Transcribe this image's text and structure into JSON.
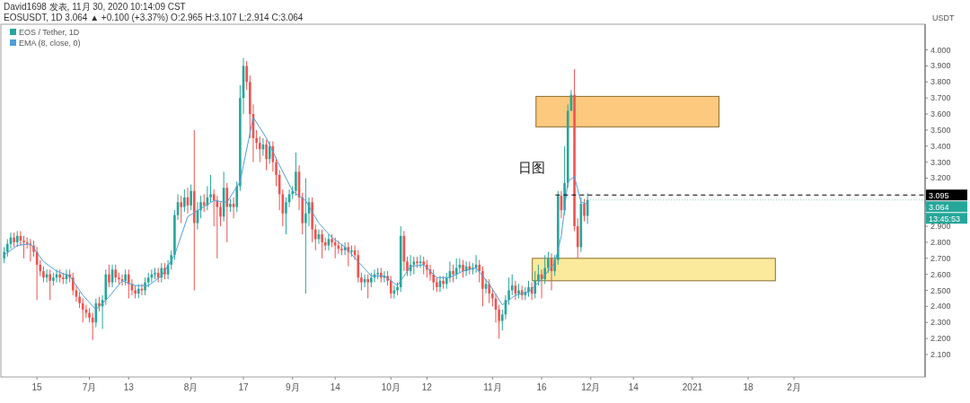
{
  "chart_data": {
    "type": "candlestick",
    "ylabel": "USDT",
    "legend": "top left",
    "annotations": [
      "David1698 发表, 11月 30, 2020 10:14:09 CST",
      "EOSUSDT, 1D 3.064 ▲ +0.100 (+3.37%) O:2.965 H:3.107 L:2.914 C:3.064",
      "日图",
      "13:45:53",
      {
        "text": "3.064",
        "x": "2020-11-30",
        "y": 3.064
      }
    ],
    "x": [
      "2020-06-05",
      "2020-06-06",
      "2020-06-07",
      "2020-06-08",
      "2020-06-09",
      "2020-06-10",
      "2020-06-11",
      "2020-06-12",
      "2020-06-13",
      "2020-06-14",
      "2020-06-15",
      "2020-06-16",
      "2020-06-17",
      "2020-06-18",
      "2020-06-19",
      "2020-06-20",
      "2020-06-21",
      "2020-06-22",
      "2020-06-23",
      "2020-06-24",
      "2020-06-25",
      "2020-06-26",
      "2020-06-27",
      "2020-06-28",
      "2020-06-29",
      "2020-06-30",
      "2020-07-01",
      "2020-07-02",
      "2020-07-03",
      "2020-07-04",
      "2020-07-05",
      "2020-07-06",
      "2020-07-07",
      "2020-07-08",
      "2020-07-09",
      "2020-07-10",
      "2020-07-11",
      "2020-07-12",
      "2020-07-13",
      "2020-07-14",
      "2020-07-15",
      "2020-07-16",
      "2020-07-17",
      "2020-07-18",
      "2020-07-19",
      "2020-07-20",
      "2020-07-21",
      "2020-07-22",
      "2020-07-23",
      "2020-07-24",
      "2020-07-25",
      "2020-07-26",
      "2020-07-27",
      "2020-07-28",
      "2020-07-29",
      "2020-07-30",
      "2020-07-31",
      "2020-08-01",
      "2020-08-02",
      "2020-08-03",
      "2020-08-04",
      "2020-08-05",
      "2020-08-06",
      "2020-08-07",
      "2020-08-08",
      "2020-08-09",
      "2020-08-10",
      "2020-08-11",
      "2020-08-12",
      "2020-08-13",
      "2020-08-14",
      "2020-08-15",
      "2020-08-16",
      "2020-08-17",
      "2020-08-18",
      "2020-08-19",
      "2020-08-20",
      "2020-08-21",
      "2020-08-22",
      "2020-08-23",
      "2020-08-24",
      "2020-08-25",
      "2020-08-26",
      "2020-08-27",
      "2020-08-28",
      "2020-08-29",
      "2020-08-30",
      "2020-08-31",
      "2020-09-01",
      "2020-09-02",
      "2020-09-03",
      "2020-09-04",
      "2020-09-05",
      "2020-09-06",
      "2020-09-07",
      "2020-09-08",
      "2020-09-09",
      "2020-09-10",
      "2020-09-11",
      "2020-09-12",
      "2020-09-13",
      "2020-09-14",
      "2020-09-15",
      "2020-09-16",
      "2020-09-17",
      "2020-09-18",
      "2020-09-19",
      "2020-09-20",
      "2020-09-21",
      "2020-09-22",
      "2020-09-23",
      "2020-09-24",
      "2020-09-25",
      "2020-09-26",
      "2020-09-27",
      "2020-09-28",
      "2020-09-29",
      "2020-09-30",
      "2020-10-01",
      "2020-10-02",
      "2020-10-03",
      "2020-10-04",
      "2020-10-05",
      "2020-10-06",
      "2020-10-07",
      "2020-10-08",
      "2020-10-09",
      "2020-10-10",
      "2020-10-11",
      "2020-10-12",
      "2020-10-13",
      "2020-10-14",
      "2020-10-15",
      "2020-10-16",
      "2020-10-17",
      "2020-10-18",
      "2020-10-19",
      "2020-10-20",
      "2020-10-21",
      "2020-10-22",
      "2020-10-23",
      "2020-10-24",
      "2020-10-25",
      "2020-10-26",
      "2020-10-27",
      "2020-10-28",
      "2020-10-29",
      "2020-10-30",
      "2020-10-31",
      "2020-11-01",
      "2020-11-02",
      "2020-11-03",
      "2020-11-04",
      "2020-11-05",
      "2020-11-06",
      "2020-11-07",
      "2020-11-08",
      "2020-11-09",
      "2020-11-10",
      "2020-11-11",
      "2020-11-12",
      "2020-11-13",
      "2020-11-14",
      "2020-11-15",
      "2020-11-16",
      "2020-11-17",
      "2020-11-18",
      "2020-11-19",
      "2020-11-20",
      "2020-11-21",
      "2020-11-22",
      "2020-11-23",
      "2020-11-24",
      "2020-11-25",
      "2020-11-26",
      "2020-11-27",
      "2020-11-28",
      "2020-11-29",
      "2020-11-30"
    ],
    "series": [
      {
        "name": "EOS / Tether, 1D",
        "colors": [
          "#26a69a",
          "#26a69a",
          "#26a69a",
          "#ef5350",
          "#26a69a",
          "#ef5350",
          "#ef5350",
          "#ef5350",
          "#ef5350",
          "#ef5350",
          "#ef5350",
          "#ef5350",
          "#ef5350",
          "#26a69a",
          "#ef5350",
          "#26a69a",
          "#26a69a",
          "#ef5350",
          "#ef5350",
          "#26a69a",
          "#ef5350",
          "#ef5350",
          "#ef5350",
          "#ef5350",
          "#ef5350",
          "#ef5350",
          "#ef5350",
          "#ef5350",
          "#26a69a",
          "#ef5350",
          "#26a69a",
          "#26a69a",
          "#ef5350",
          "#26a69a",
          "#ef5350",
          "#ef5350",
          "#ef5350",
          "#26a69a",
          "#ef5350",
          "#ef5350",
          "#ef5350",
          "#26a69a",
          "#ef5350",
          "#26a69a",
          "#26a69a",
          "#26a69a",
          "#26a69a",
          "#ef5350",
          "#26a69a",
          "#ef5350",
          "#26a69a",
          "#26a69a",
          "#26a69a",
          "#26a69a",
          "#ef5350",
          "#26a69a",
          "#ef5350",
          "#26a69a",
          "#ef5350",
          "#26a69a",
          "#26a69a",
          "#ef5350",
          "#26a69a",
          "#26a69a",
          "#ef5350",
          "#ef5350",
          "#ef5350",
          "#26a69a",
          "#ef5350",
          "#26a69a",
          "#ef5350",
          "#26a69a",
          "#26a69a",
          "#26a69a",
          "#ef5350",
          "#ef5350",
          "#ef5350",
          "#ef5350",
          "#ef5350",
          "#26a69a",
          "#ef5350",
          "#26a69a",
          "#ef5350",
          "#ef5350",
          "#ef5350",
          "#ef5350",
          "#26a69a",
          "#26a69a",
          "#26a69a",
          "#26a69a",
          "#ef5350",
          "#ef5350",
          "#26a69a",
          "#26a69a",
          "#ef5350",
          "#ef5350",
          "#26a69a",
          "#ef5350",
          "#ef5350",
          "#26a69a",
          "#ef5350",
          "#ef5350",
          "#ef5350",
          "#ef5350",
          "#26a69a",
          "#ef5350",
          "#26a69a",
          "#ef5350",
          "#ef5350",
          "#ef5350",
          "#26a69a",
          "#ef5350",
          "#26a69a",
          "#26a69a",
          "#26a69a",
          "#ef5350",
          "#26a69a",
          "#ef5350",
          "#ef5350",
          "#26a69a",
          "#26a69a",
          "#26a69a",
          "#ef5350",
          "#ef5350",
          "#26a69a",
          "#26a69a",
          "#ef5350",
          "#26a69a",
          "#ef5350",
          "#ef5350",
          "#ef5350",
          "#ef5350",
          "#ef5350",
          "#26a69a",
          "#ef5350",
          "#26a69a",
          "#26a69a",
          "#ef5350",
          "#26a69a",
          "#26a69a",
          "#ef5350",
          "#26a69a",
          "#ef5350",
          "#26a69a",
          "#26a69a",
          "#ef5350",
          "#ef5350",
          "#26a69a",
          "#ef5350",
          "#ef5350",
          "#ef5350",
          "#ef5350",
          "#26a69a",
          "#26a69a",
          "#26a69a",
          "#26a69a",
          "#ef5350",
          "#26a69a",
          "#ef5350",
          "#26a69a",
          "#26a69a",
          "#ef5350",
          "#26a69a",
          "#26a69a",
          "#ef5350",
          "#26a69a",
          "#26a69a",
          "#ef5350",
          "#26a69a",
          "#26a69a",
          "#ef5350",
          "#26a69a",
          "#26a69a",
          "#26a69a",
          "#ef5350",
          "#ef5350",
          "#26a69a",
          "#ef5350",
          "#26a69a"
        ],
        "ohlc": [
          [
            2.7,
            2.77,
            2.67,
            2.74
          ],
          [
            2.74,
            2.82,
            2.71,
            2.79
          ],
          [
            2.79,
            2.86,
            2.76,
            2.83
          ],
          [
            2.83,
            2.86,
            2.77,
            2.8
          ],
          [
            2.8,
            2.87,
            2.77,
            2.84
          ],
          [
            2.84,
            2.87,
            2.78,
            2.81
          ],
          [
            2.81,
            2.84,
            2.7,
            2.8
          ],
          [
            2.8,
            2.83,
            2.76,
            2.79
          ],
          [
            2.79,
            2.82,
            2.68,
            2.78
          ],
          [
            2.78,
            2.81,
            2.71,
            2.74
          ],
          [
            2.74,
            2.77,
            2.44,
            2.66
          ],
          [
            2.66,
            2.69,
            2.59,
            2.62
          ],
          [
            2.62,
            2.65,
            2.55,
            2.58
          ],
          [
            2.58,
            2.63,
            2.55,
            2.6
          ],
          [
            2.6,
            2.63,
            2.44,
            2.56
          ],
          [
            2.56,
            2.61,
            2.53,
            2.58
          ],
          [
            2.58,
            2.63,
            2.55,
            2.6
          ],
          [
            2.6,
            2.63,
            2.55,
            2.58
          ],
          [
            2.58,
            2.61,
            2.54,
            2.57
          ],
          [
            2.57,
            2.63,
            2.54,
            2.6
          ],
          [
            2.6,
            2.63,
            2.55,
            2.58
          ],
          [
            2.58,
            2.61,
            2.47,
            2.5
          ],
          [
            2.5,
            2.53,
            2.43,
            2.46
          ],
          [
            2.46,
            2.49,
            2.39,
            2.42
          ],
          [
            2.42,
            2.45,
            2.3,
            2.38
          ],
          [
            2.38,
            2.41,
            2.33,
            2.36
          ],
          [
            2.36,
            2.39,
            2.3,
            2.33
          ],
          [
            2.33,
            2.36,
            2.19,
            2.3
          ],
          [
            2.3,
            2.45,
            2.27,
            2.42
          ],
          [
            2.42,
            2.46,
            2.37,
            2.4
          ],
          [
            2.4,
            2.47,
            2.26,
            2.44
          ],
          [
            2.44,
            2.63,
            2.41,
            2.6
          ],
          [
            2.6,
            2.66,
            2.52,
            2.55
          ],
          [
            2.55,
            2.66,
            2.52,
            2.63
          ],
          [
            2.63,
            2.66,
            2.55,
            2.58
          ],
          [
            2.58,
            2.61,
            2.54,
            2.57
          ],
          [
            2.57,
            2.6,
            2.53,
            2.56
          ],
          [
            2.56,
            2.63,
            2.53,
            2.6
          ],
          [
            2.6,
            2.63,
            2.45,
            2.54
          ],
          [
            2.54,
            2.57,
            2.47,
            2.5
          ],
          [
            2.5,
            2.53,
            2.45,
            2.48
          ],
          [
            2.48,
            2.54,
            2.45,
            2.51
          ],
          [
            2.51,
            2.54,
            2.47,
            2.5
          ],
          [
            2.5,
            2.58,
            2.47,
            2.55
          ],
          [
            2.55,
            2.61,
            2.52,
            2.58
          ],
          [
            2.58,
            2.63,
            2.55,
            2.6
          ],
          [
            2.6,
            2.64,
            2.57,
            2.61
          ],
          [
            2.61,
            2.64,
            2.55,
            2.58
          ],
          [
            2.58,
            2.67,
            2.55,
            2.64
          ],
          [
            2.64,
            2.67,
            2.57,
            2.6
          ],
          [
            2.6,
            2.69,
            2.57,
            2.66
          ],
          [
            2.66,
            2.75,
            2.63,
            2.72
          ],
          [
            2.72,
            3.0,
            2.69,
            2.97
          ],
          [
            2.97,
            3.1,
            2.94,
            3.05
          ],
          [
            3.05,
            3.09,
            2.92,
            3.02
          ],
          [
            3.02,
            3.13,
            2.99,
            3.08
          ],
          [
            3.08,
            3.14,
            2.98,
            3.03
          ],
          [
            3.03,
            3.16,
            3.0,
            3.12
          ],
          [
            3.12,
            3.5,
            2.5,
            2.92
          ],
          [
            2.92,
            3.05,
            2.88,
            3.0
          ],
          [
            3.0,
            3.09,
            2.95,
            3.05
          ],
          [
            3.05,
            3.1,
            2.99,
            3.03
          ],
          [
            3.03,
            3.15,
            3.0,
            3.08
          ],
          [
            3.08,
            3.22,
            3.05,
            3.1
          ],
          [
            3.1,
            3.13,
            2.9,
            3.06
          ],
          [
            3.06,
            3.09,
            2.7,
            3.02
          ],
          [
            3.02,
            3.05,
            2.9,
            2.96
          ],
          [
            2.96,
            3.24,
            2.93,
            3.14
          ],
          [
            3.14,
            3.17,
            2.8,
            3.02
          ],
          [
            3.02,
            3.07,
            2.99,
            3.04
          ],
          [
            3.04,
            3.08,
            2.95,
            3.02
          ],
          [
            3.02,
            3.18,
            2.99,
            3.15
          ],
          [
            3.15,
            3.78,
            3.12,
            3.7
          ],
          [
            3.7,
            3.95,
            3.6,
            3.9
          ],
          [
            3.9,
            3.93,
            3.75,
            3.8
          ],
          [
            3.8,
            3.84,
            3.45,
            3.6
          ],
          [
            3.6,
            3.66,
            3.3,
            3.45
          ],
          [
            3.45,
            3.5,
            3.38,
            3.42
          ],
          [
            3.42,
            3.46,
            3.3,
            3.38
          ],
          [
            3.38,
            3.45,
            3.34,
            3.41
          ],
          [
            3.41,
            3.44,
            3.25,
            3.32
          ],
          [
            3.32,
            3.43,
            3.29,
            3.4
          ],
          [
            3.4,
            3.43,
            3.24,
            3.3
          ],
          [
            3.3,
            3.33,
            3.15,
            3.22
          ],
          [
            3.22,
            3.25,
            3.0,
            3.1
          ],
          [
            3.1,
            3.13,
            2.9,
            2.98
          ],
          [
            2.98,
            3.08,
            2.85,
            3.05
          ],
          [
            3.05,
            3.13,
            3.02,
            3.1
          ],
          [
            3.1,
            3.15,
            3.07,
            3.12
          ],
          [
            3.12,
            3.36,
            3.09,
            3.24
          ],
          [
            3.24,
            3.28,
            3.0,
            3.08
          ],
          [
            3.08,
            3.11,
            2.85,
            2.92
          ],
          [
            2.92,
            3.2,
            2.48,
            2.98
          ],
          [
            2.98,
            3.08,
            2.9,
            3.05
          ],
          [
            3.05,
            3.08,
            2.8,
            2.88
          ],
          [
            2.88,
            2.91,
            2.75,
            2.82
          ],
          [
            2.82,
            2.88,
            2.79,
            2.85
          ],
          [
            2.85,
            2.88,
            2.7,
            2.8
          ],
          [
            2.8,
            2.83,
            2.75,
            2.78
          ],
          [
            2.78,
            2.85,
            2.75,
            2.82
          ],
          [
            2.82,
            2.85,
            2.77,
            2.8
          ],
          [
            2.8,
            2.83,
            2.7,
            2.78
          ],
          [
            2.78,
            2.81,
            2.73,
            2.76
          ],
          [
            2.76,
            2.79,
            2.72,
            2.75
          ],
          [
            2.75,
            2.8,
            2.72,
            2.77
          ],
          [
            2.77,
            2.8,
            2.65,
            2.74
          ],
          [
            2.74,
            2.78,
            2.71,
            2.75
          ],
          [
            2.75,
            2.78,
            2.69,
            2.72
          ],
          [
            2.72,
            2.75,
            2.55,
            2.58
          ],
          [
            2.58,
            2.61,
            2.5,
            2.55
          ],
          [
            2.55,
            2.6,
            2.52,
            2.57
          ],
          [
            2.57,
            2.6,
            2.45,
            2.55
          ],
          [
            2.55,
            2.61,
            2.52,
            2.58
          ],
          [
            2.58,
            2.63,
            2.55,
            2.6
          ],
          [
            2.6,
            2.64,
            2.57,
            2.61
          ],
          [
            2.61,
            2.64,
            2.55,
            2.58
          ],
          [
            2.58,
            2.62,
            2.55,
            2.59
          ],
          [
            2.59,
            2.62,
            2.53,
            2.56
          ],
          [
            2.56,
            2.59,
            2.45,
            2.48
          ],
          [
            2.48,
            2.53,
            2.45,
            2.5
          ],
          [
            2.5,
            2.55,
            2.47,
            2.52
          ],
          [
            2.52,
            2.9,
            2.49,
            2.84
          ],
          [
            2.84,
            2.87,
            2.62,
            2.68
          ],
          [
            2.68,
            2.71,
            2.59,
            2.62
          ],
          [
            2.62,
            2.72,
            2.59,
            2.66
          ],
          [
            2.66,
            2.71,
            2.6,
            2.68
          ],
          [
            2.68,
            2.71,
            2.64,
            2.67
          ],
          [
            2.67,
            2.72,
            2.64,
            2.68
          ],
          [
            2.68,
            2.71,
            2.6,
            2.66
          ],
          [
            2.66,
            2.69,
            2.58,
            2.63
          ],
          [
            2.63,
            2.66,
            2.56,
            2.6
          ],
          [
            2.6,
            2.63,
            2.5,
            2.55
          ],
          [
            2.55,
            2.58,
            2.49,
            2.52
          ],
          [
            2.52,
            2.59,
            2.49,
            2.56
          ],
          [
            2.56,
            2.59,
            2.51,
            2.54
          ],
          [
            2.54,
            2.61,
            2.51,
            2.58
          ],
          [
            2.58,
            2.68,
            2.55,
            2.62
          ],
          [
            2.62,
            2.66,
            2.55,
            2.6
          ],
          [
            2.6,
            2.7,
            2.57,
            2.64
          ],
          [
            2.64,
            2.7,
            2.61,
            2.66
          ],
          [
            2.66,
            2.69,
            2.58,
            2.62
          ],
          [
            2.62,
            2.68,
            2.59,
            2.65
          ],
          [
            2.65,
            2.68,
            2.6,
            2.63
          ],
          [
            2.63,
            2.67,
            2.6,
            2.64
          ],
          [
            2.64,
            2.72,
            2.61,
            2.66
          ],
          [
            2.66,
            2.69,
            2.55,
            2.62
          ],
          [
            2.62,
            2.65,
            2.4,
            2.51
          ],
          [
            2.51,
            2.57,
            2.48,
            2.54
          ],
          [
            2.54,
            2.57,
            2.42,
            2.48
          ],
          [
            2.48,
            2.51,
            2.4,
            2.45
          ],
          [
            2.45,
            2.48,
            2.3,
            2.38
          ],
          [
            2.38,
            2.41,
            2.2,
            2.31
          ],
          [
            2.31,
            2.38,
            2.25,
            2.35
          ],
          [
            2.35,
            2.47,
            2.32,
            2.44
          ],
          [
            2.44,
            2.58,
            2.41,
            2.5
          ],
          [
            2.5,
            2.6,
            2.47,
            2.53
          ],
          [
            2.53,
            2.56,
            2.44,
            2.48
          ],
          [
            2.48,
            2.54,
            2.45,
            2.5
          ],
          [
            2.5,
            2.53,
            2.44,
            2.47
          ],
          [
            2.47,
            2.52,
            2.44,
            2.49
          ],
          [
            2.49,
            2.56,
            2.46,
            2.52
          ],
          [
            2.52,
            2.55,
            2.44,
            2.48
          ],
          [
            2.48,
            2.62,
            2.45,
            2.56
          ],
          [
            2.56,
            2.66,
            2.53,
            2.6
          ],
          [
            2.6,
            2.63,
            2.45,
            2.57
          ],
          [
            2.57,
            2.72,
            2.54,
            2.64
          ],
          [
            2.64,
            2.74,
            2.61,
            2.7
          ],
          [
            2.7,
            2.73,
            2.5,
            2.62
          ],
          [
            2.62,
            2.72,
            2.59,
            2.69
          ],
          [
            2.69,
            3.12,
            2.66,
            3.09
          ],
          [
            3.09,
            3.12,
            2.95,
            3.0
          ],
          [
            3.0,
            3.4,
            2.97,
            3.17
          ],
          [
            3.17,
            3.66,
            3.14,
            3.62
          ],
          [
            3.62,
            3.75,
            3.62,
            3.72
          ],
          [
            3.72,
            3.88,
            2.87,
            2.9
          ],
          [
            2.9,
            2.95,
            2.7,
            2.77
          ],
          [
            2.77,
            3.08,
            2.74,
            3.04
          ],
          [
            3.04,
            3.07,
            2.93,
            2.965
          ],
          [
            2.965,
            3.107,
            2.914,
            3.064
          ]
        ]
      },
      {
        "name": "EMA (8, close, 0)",
        "type": "line",
        "color": "#4f9fd8",
        "x": [
          "2020-06-05",
          "2020-06-09",
          "2020-06-13",
          "2020-06-17",
          "2020-06-21",
          "2020-06-25",
          "2020-06-29",
          "2020-07-03",
          "2020-07-07",
          "2020-07-11",
          "2020-07-15",
          "2020-07-19",
          "2020-07-23",
          "2020-07-27",
          "2020-07-31",
          "2020-08-04",
          "2020-08-08",
          "2020-08-12",
          "2020-08-16",
          "2020-08-20",
          "2020-08-24",
          "2020-08-28",
          "2020-09-01",
          "2020-09-05",
          "2020-09-09",
          "2020-09-13",
          "2020-09-17",
          "2020-09-21",
          "2020-09-25",
          "2020-09-29",
          "2020-10-03",
          "2020-10-07",
          "2020-10-11",
          "2020-10-15",
          "2020-10-19",
          "2020-10-23",
          "2020-10-27",
          "2020-10-31",
          "2020-11-04",
          "2020-11-08",
          "2020-11-12",
          "2020-11-16",
          "2020-11-20",
          "2020-11-22",
          "2020-11-24",
          "2020-11-26",
          "2020-11-28",
          "2020-11-30"
        ],
        "values": [
          2.72,
          2.78,
          2.79,
          2.68,
          2.62,
          2.59,
          2.47,
          2.38,
          2.46,
          2.56,
          2.53,
          2.53,
          2.59,
          2.72,
          2.96,
          3.01,
          3.06,
          3.05,
          3.18,
          3.58,
          3.45,
          3.28,
          3.12,
          3.06,
          2.92,
          2.83,
          2.77,
          2.68,
          2.59,
          2.59,
          2.53,
          2.65,
          2.66,
          2.58,
          2.58,
          2.62,
          2.64,
          2.54,
          2.41,
          2.47,
          2.49,
          2.57,
          2.67,
          2.84,
          3.18,
          3.21,
          3.05,
          3.04
        ]
      }
    ],
    "xlim": [
      "2020-06-04",
      "2021-03-13"
    ],
    "xticks": [
      {
        "value": "2020-06-15",
        "label": "15"
      },
      {
        "value": "2020-07-01",
        "label": "7月"
      },
      {
        "value": "2020-07-13",
        "label": "13"
      },
      {
        "value": "2020-08-01",
        "label": "8月"
      },
      {
        "value": "2020-08-17",
        "label": "17"
      },
      {
        "value": "2020-09-01",
        "label": "9月"
      },
      {
        "value": "2020-09-14",
        "label": "14"
      },
      {
        "value": "2020-10-01",
        "label": "10月"
      },
      {
        "value": "2020-10-12",
        "label": "12"
      },
      {
        "value": "2020-11-01",
        "label": "11月"
      },
      {
        "value": "2020-11-16",
        "label": "16"
      },
      {
        "value": "2020-12-01",
        "label": "12月"
      },
      {
        "value": "2020-12-14",
        "label": "14"
      },
      {
        "value": "2021-01-01",
        "label": "2021"
      },
      {
        "value": "2021-01-18",
        "label": "18"
      },
      {
        "value": "2021-02-01",
        "label": "2月"
      }
    ],
    "ylim": [
      1.96,
      4.16
    ],
    "yticks": [
      {
        "value": 2.1,
        "label": "2.100"
      },
      {
        "value": 2.2,
        "label": "2.200"
      },
      {
        "value": 2.3,
        "label": "2.300"
      },
      {
        "value": 2.4,
        "label": "2.400"
      },
      {
        "value": 2.5,
        "label": "2.500"
      },
      {
        "value": 2.6,
        "label": "2.600"
      },
      {
        "value": 2.7,
        "label": "2.700"
      },
      {
        "value": 2.8,
        "label": "2.800"
      },
      {
        "value": 2.9,
        "label": "2.900"
      },
      {
        "value": 3.2,
        "label": "3.200"
      },
      {
        "value": 3.3,
        "label": "3.300"
      },
      {
        "value": 3.4,
        "label": "3.400"
      },
      {
        "value": 3.5,
        "label": "3.500"
      },
      {
        "value": 3.6,
        "label": "3.600"
      },
      {
        "value": 3.7,
        "label": "3.700"
      },
      {
        "value": 3.8,
        "label": "3.800"
      },
      {
        "value": 3.9,
        "label": "3.900"
      },
      {
        "value": 4.0,
        "label": "4.000"
      }
    ],
    "ref_lines": [
      {
        "axis": "y",
        "value": 3.095,
        "label": "3.095",
        "line_style": "dashed",
        "color": "#000000"
      }
    ],
    "bands": [
      {
        "axis": "y",
        "from": 3.52,
        "to": 3.71,
        "color": "#fcc97e"
      },
      {
        "axis": "y",
        "from": 2.56,
        "to": 2.7,
        "color": "#fbe99c"
      }
    ]
  }
}
